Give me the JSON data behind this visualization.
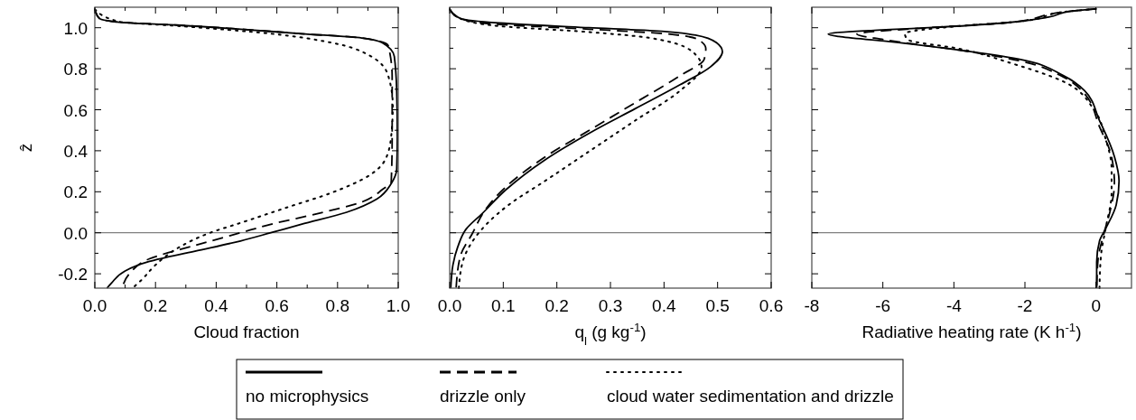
{
  "chart_data": [
    {
      "type": "line",
      "xlabel": "Cloud fraction",
      "ylabel": "ẑ",
      "legend": "bottom",
      "xlim": [
        0,
        1.0
      ],
      "xticks": [
        {
          "value": 0,
          "label": "0.0"
        },
        {
          "value": 0.1,
          "label": null
        },
        0.2,
        {
          "value": 0.3,
          "label": null
        },
        0.4,
        {
          "value": 0.5,
          "label": null
        },
        0.6,
        {
          "value": 0.7,
          "label": null
        },
        0.8,
        {
          "value": 0.9,
          "label": null
        },
        {
          "value": 1.0,
          "label": "1.0"
        }
      ],
      "ylim": [
        -0.27,
        1.1
      ],
      "yticks": [
        -0.2,
        {
          "value": -0.1,
          "label": null
        },
        {
          "value": 0,
          "label": "0.0"
        },
        {
          "value": 0.1,
          "label": null
        },
        0.2,
        {
          "value": 0.3,
          "label": null
        },
        0.4,
        {
          "value": 0.5,
          "label": null
        },
        0.6,
        {
          "value": 0.7,
          "label": null
        },
        0.8,
        {
          "value": 0.9,
          "label": null
        },
        {
          "value": 1.0,
          "label": "1.0"
        }
      ],
      "ref_lines": [
        {
          "axis": "y",
          "value": 0,
          "color": "#808080"
        }
      ],
      "series": [
        {
          "name": "no microphysics",
          "color": "#000000",
          "line_style": "solid",
          "x": [
            0,
            0.015,
            0.08,
            0.28,
            0.48,
            0.68,
            0.88,
            0.947,
            0.987,
            0.995,
            0.997,
            0.995,
            0.977,
            0.93,
            0.83,
            0.68,
            0.58,
            0.48,
            0.33,
            0.18,
            0.1,
            0.055,
            0.04
          ],
          "values": [
            1.09,
            1.045,
            1.027,
            1.012,
            0.993,
            0.971,
            0.95,
            0.927,
            0.86,
            0.69,
            0.47,
            0.31,
            0.24,
            0.165,
            0.1,
            0.041,
            0,
            -0.04,
            -0.09,
            -0.14,
            -0.186,
            -0.245,
            -0.27
          ]
        },
        {
          "name": "drizzle only",
          "color": "#000000",
          "line_style": "dashed",
          "x": [
            0,
            0.015,
            0.08,
            0.28,
            0.48,
            0.68,
            0.88,
            0.967,
            0.98,
            0.98,
            0.977,
            0.947,
            0.88,
            0.73,
            0.58,
            0.48,
            0.33,
            0.18,
            0.114,
            0.09
          ],
          "values": [
            1.09,
            1.045,
            1.027,
            1.012,
            0.993,
            0.971,
            0.95,
            0.913,
            0.76,
            0.47,
            0.25,
            0.21,
            0.15,
            0.092,
            0.041,
            0,
            -0.062,
            -0.127,
            -0.2,
            -0.27
          ]
        },
        {
          "name": "cloud water sedimentation and drizzle",
          "color": "#000000",
          "line_style": "dotted",
          "x": [
            0,
            0.08,
            0.28,
            0.58,
            0.78,
            0.9,
            0.967,
            0.982,
            0.977,
            0.957,
            0.908,
            0.78,
            0.63,
            0.48,
            0.38,
            0.28,
            0.2,
            0.154,
            0.124
          ],
          "values": [
            1.09,
            1.03,
            1.008,
            0.971,
            0.927,
            0.869,
            0.766,
            0.62,
            0.473,
            0.356,
            0.283,
            0.195,
            0.122,
            0.048,
            0,
            -0.069,
            -0.157,
            -0.23,
            -0.27
          ]
        }
      ]
    },
    {
      "type": "line",
      "xlabel": "q$_{l}$ (g kg$^{-1}$)",
      "tick_labels": "x",
      "xlim": [
        0,
        0.6
      ],
      "xticks": [
        {
          "value": 0,
          "label": "0.0"
        },
        0.1,
        0.2,
        0.3,
        0.4,
        0.5,
        0.6
      ],
      "ylim": [
        -0.27,
        1.1
      ],
      "yticks": [
        -0.2,
        -0.1,
        0,
        0.1,
        0.2,
        0.3,
        0.4,
        0.5,
        0.6,
        0.7,
        0.8,
        0.9,
        1.0
      ],
      "ref_lines": [
        {
          "axis": "y",
          "value": 0,
          "color": "#808080"
        }
      ],
      "series": [
        {
          "color": "#000000",
          "line_style": "solid",
          "x": [
            0,
            0.02,
            0.093,
            0.26,
            0.374,
            0.459,
            0.498,
            0.509,
            0.487,
            0.43,
            0.346,
            0.262,
            0.178,
            0.105,
            0.06,
            0.031,
            0.015,
            0.006,
            0.002
          ],
          "values": [
            1.09,
            1.045,
            1.023,
            1.0,
            0.986,
            0.964,
            0.927,
            0.883,
            0.81,
            0.722,
            0.605,
            0.488,
            0.356,
            0.21,
            0.092,
            0.019,
            -0.069,
            -0.157,
            -0.27
          ]
        },
        {
          "color": "#000000",
          "line_style": "dashed",
          "x": [
            0,
            0.02,
            0.093,
            0.26,
            0.4,
            0.464,
            0.478,
            0.475,
            0.43,
            0.346,
            0.262,
            0.178,
            0.105,
            0.065,
            0.043,
            0.02,
            0.012
          ],
          "values": [
            1.09,
            1.045,
            1.016,
            0.993,
            0.971,
            0.942,
            0.898,
            0.847,
            0.766,
            0.634,
            0.502,
            0.37,
            0.224,
            0.107,
            0,
            -0.113,
            -0.27
          ]
        },
        {
          "color": "#000000",
          "line_style": "dotted",
          "x": [
            0,
            0.02,
            0.093,
            0.26,
            0.374,
            0.453,
            0.47,
            0.43,
            0.346,
            0.262,
            0.178,
            0.11,
            0.071,
            0.043,
            0.026,
            0.017
          ],
          "values": [
            1.09,
            1.045,
            1.008,
            0.979,
            0.95,
            0.883,
            0.81,
            0.693,
            0.547,
            0.4,
            0.253,
            0.136,
            0.048,
            -0.04,
            -0.127,
            -0.27
          ]
        }
      ]
    },
    {
      "type": "line",
      "xlabel": "Radiative heating rate (K h$^{-1}$)",
      "tick_labels": "x",
      "xlim": [
        -8,
        1
      ],
      "xticks": [
        -8,
        -6,
        -4,
        -2,
        0
      ],
      "ylim": [
        -0.27,
        1.1
      ],
      "yticks": [
        -0.2,
        -0.1,
        0,
        0.1,
        0.2,
        0.3,
        0.4,
        0.5,
        0.6,
        0.7,
        0.8,
        0.9,
        1.0
      ],
      "ref_lines": [
        {
          "axis": "y",
          "value": 0,
          "color": "#808080"
        }
      ],
      "series": [
        {
          "color": "#000000",
          "line_style": "solid",
          "x": [
            0,
            -0.7,
            -1.33,
            -2.6,
            -4.71,
            -6.4,
            -7.54,
            -7.24,
            -5.97,
            -3.86,
            -2.18,
            -0.91,
            -0.32,
            0.1,
            0.52,
            0.65,
            0.57,
            0.27,
            0.1,
            0.02,
            0.02
          ],
          "values": [
            1.092,
            1.081,
            1.052,
            1.023,
            1.0,
            0.986,
            0.969,
            0.957,
            0.935,
            0.891,
            0.847,
            0.766,
            0.693,
            0.547,
            0.371,
            0.253,
            0.136,
            0.019,
            -0.04,
            -0.142,
            -0.27
          ]
        },
        {
          "color": "#000000",
          "line_style": "dashed",
          "x": [
            0,
            -0.7,
            -2.6,
            -4.71,
            -6.73,
            -5.97,
            -3.86,
            -2.18,
            -0.91,
            -0.32,
            0.1,
            0.44,
            0.52,
            0.4,
            0.23,
            0.06,
            0.02
          ],
          "values": [
            1.092,
            1.081,
            1.023,
            1.0,
            0.969,
            0.942,
            0.891,
            0.84,
            0.759,
            0.678,
            0.517,
            0.371,
            0.239,
            0.107,
            0,
            -0.127,
            -0.27
          ]
        },
        {
          "color": "#000000",
          "line_style": "dotted",
          "x": [
            0,
            -0.7,
            -2.18,
            -3.86,
            -5.38,
            -5.3,
            -3.86,
            -2.35,
            -0.91,
            -0.07,
            0.27,
            0.44,
            0.44,
            0.27,
            0.14,
            0.1
          ],
          "values": [
            1.092,
            1.081,
            1.03,
            1.008,
            0.971,
            0.942,
            0.898,
            0.825,
            0.737,
            0.605,
            0.459,
            0.312,
            0.195,
            0.019,
            -0.113,
            -0.27
          ]
        }
      ]
    }
  ]
}
